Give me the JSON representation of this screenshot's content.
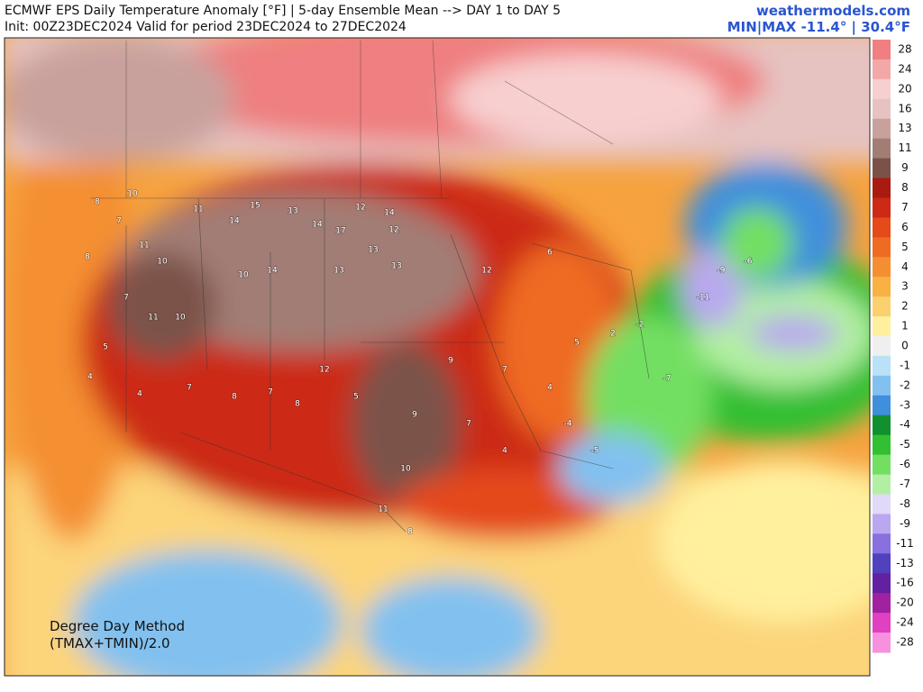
{
  "header": {
    "title": "ECMWF EPS Daily Temperature Anomaly [°F] | 5-day Ensemble Mean --> DAY 1 to DAY 5",
    "subtitle": "Init: 00Z23DEC2024 Valid for period 23DEC2024 to 27DEC2024",
    "source": "weathermodels.com",
    "minmax": "MIN|MAX -11.4° | 30.4°F"
  },
  "note": [
    "Degree Day Method",
    "(TMAX+TMIN)/2.0"
  ],
  "colorbar": {
    "levels": [
      28,
      24,
      20,
      16,
      13,
      11,
      9,
      8,
      7,
      6,
      5,
      4,
      3,
      2,
      1,
      0,
      -1,
      -2,
      -3,
      -4,
      -5,
      -6,
      -7,
      -8,
      -9,
      -11,
      -13,
      -16,
      -20,
      -24,
      -28
    ],
    "colors": [
      "#ef7f80",
      "#f4a7a7",
      "#f8cfcf",
      "#e6c3c1",
      "#c9a19c",
      "#a27d74",
      "#7b5249",
      "#a91b10",
      "#cc2a14",
      "#e44a1a",
      "#ef6b22",
      "#f48f31",
      "#f8b142",
      "#fbd06f",
      "#fff09e",
      "#efefef",
      "#b9e1f7",
      "#82c1ef",
      "#3f8fdd",
      "#129030",
      "#32bf33",
      "#73df62",
      "#b2efa2",
      "#e0d9f7",
      "#b9a8ef",
      "#8870df",
      "#5141bf",
      "#6121a1",
      "#a121a1",
      "#df41c1",
      "#f791df"
    ]
  },
  "stations": [
    8,
    10,
    7,
    8,
    11,
    11,
    15,
    14,
    13,
    14,
    17,
    12,
    14,
    12,
    13,
    13,
    13,
    14,
    10,
    10,
    11,
    10,
    7,
    5,
    4,
    4,
    7,
    8,
    7,
    8,
    12,
    5,
    9,
    10,
    11,
    8,
    9,
    7,
    7,
    4,
    5,
    2,
    -2,
    -7,
    -11,
    -9,
    -6,
    -4,
    -5,
    4,
    12,
    6
  ]
}
